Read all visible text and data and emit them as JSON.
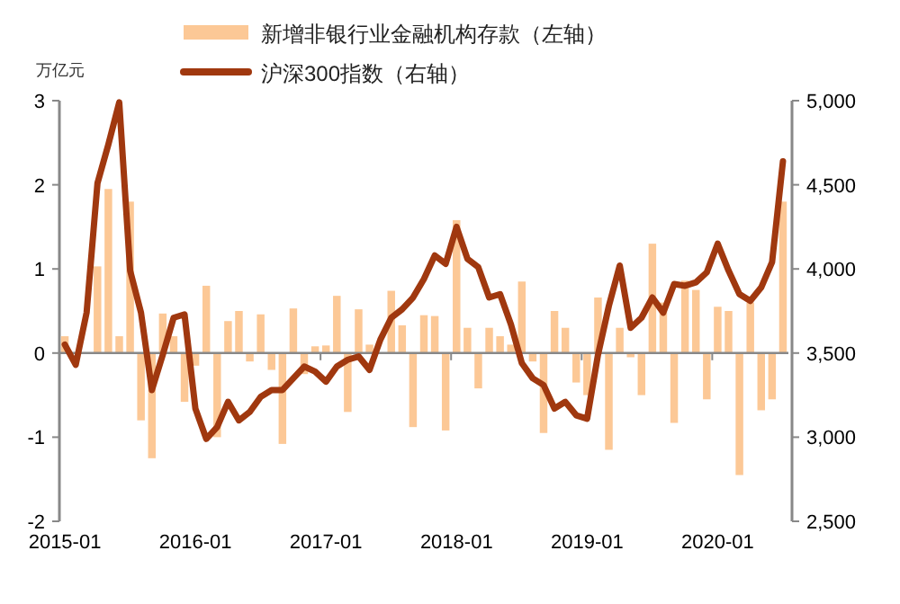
{
  "chart_data": {
    "type": "bar",
    "ylabel": "万亿元",
    "legend": "top",
    "categories": [
      "2015-01",
      null,
      null,
      null,
      null,
      null,
      null,
      null,
      null,
      null,
      null,
      null,
      "2016-01",
      null,
      null,
      null,
      null,
      null,
      null,
      null,
      null,
      null,
      null,
      null,
      "2017-01",
      null,
      null,
      null,
      null,
      null,
      null,
      null,
      null,
      null,
      null,
      null,
      "2018-01",
      null,
      null,
      null,
      null,
      null,
      null,
      null,
      null,
      null,
      null,
      null,
      "2019-01",
      null,
      null,
      null,
      null,
      null,
      null,
      null,
      null,
      null,
      null,
      null,
      "2020-01",
      null,
      null,
      null,
      null,
      null,
      null
    ],
    "series": [
      {
        "name": "新增非银行业金融机构存款（左轴）",
        "color": "#fcc896",
        "values": [
          0.2,
          null,
          null,
          1.03,
          1.95,
          0.2,
          1.8,
          -0.8,
          -1.25,
          0.47,
          0.2,
          -0.58,
          -0.15,
          0.8,
          -1.0,
          0.38,
          0.5,
          -0.1,
          0.46,
          -0.2,
          -1.08,
          0.53,
          -0.25,
          0.08,
          0.09,
          0.68,
          -0.7,
          0.52,
          0.1,
          null,
          0.74,
          0.33,
          -0.88,
          0.45,
          0.44,
          -0.92,
          1.58,
          0.3,
          -0.42,
          0.3,
          0.2,
          0.1,
          0.85,
          -0.1,
          -0.95,
          0.5,
          0.3,
          -0.35,
          -0.5,
          0.66,
          -1.15,
          0.3,
          -0.05,
          -0.5,
          1.3,
          0.6,
          -0.83,
          0.86,
          0.75,
          -0.55,
          0.55,
          0.5,
          -1.45,
          0.6,
          -0.68,
          -0.55,
          1.8
        ]
      },
      {
        "name": "沪深300指数（右轴）",
        "type": "line",
        "axis": "y2",
        "color": "#a0380f",
        "values": [
          3550,
          3430,
          3740,
          4510,
          4740,
          4990,
          3990,
          3740,
          3280,
          3490,
          3710,
          3730,
          3170,
          2990,
          3060,
          3210,
          3100,
          3150,
          3240,
          3280,
          3280,
          3350,
          3420,
          3390,
          3330,
          3420,
          3460,
          3480,
          3400,
          3580,
          3710,
          3760,
          3830,
          3940,
          4080,
          4030,
          4250,
          4060,
          4010,
          3830,
          3850,
          3670,
          3440,
          3350,
          3310,
          3170,
          3210,
          3130,
          3110,
          3490,
          3780,
          4020,
          3650,
          3710,
          3830,
          3740,
          3910,
          3900,
          3920,
          3980,
          4150,
          3990,
          3850,
          3810,
          3890,
          4040,
          4640
        ]
      }
    ],
    "ylim": [
      -2,
      3
    ],
    "yticks": [
      -2,
      -1,
      0,
      1,
      2,
      3
    ],
    "y2lim": [
      2500,
      5000
    ],
    "y2ticks": [
      {
        "value": 2500,
        "label": "2,500"
      },
      {
        "value": 3000,
        "label": "3,000"
      },
      {
        "value": 3500,
        "label": "3,500"
      },
      {
        "value": 4000,
        "label": "4,000"
      },
      {
        "value": 4500,
        "label": "4,500"
      },
      {
        "value": 5000,
        "label": "5,000"
      }
    ]
  }
}
